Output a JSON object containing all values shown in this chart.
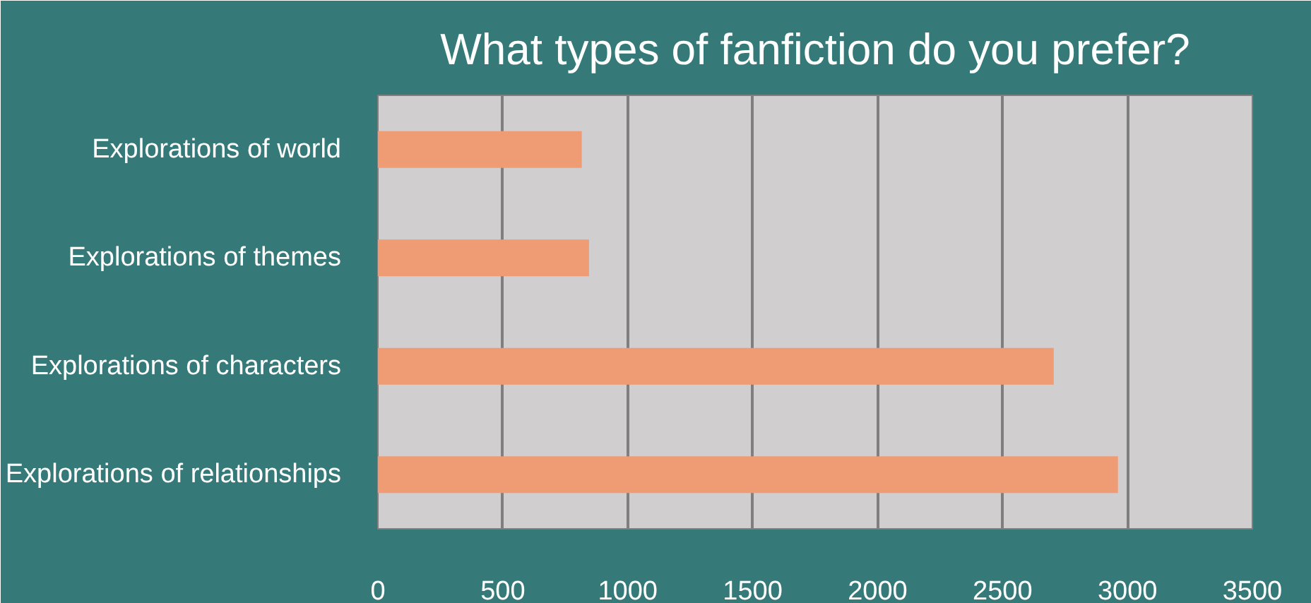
{
  "chart_data": {
    "type": "bar",
    "orientation": "horizontal",
    "title": "What types of fanfiction do you prefer?",
    "categories": [
      "Explorations of world",
      "Explorations of themes",
      "Explorations of characters",
      "Explorations of relationships"
    ],
    "values": [
      816,
      845,
      2705,
      2962
    ],
    "color": "#ef9b73",
    "xlim": [
      0,
      3500
    ],
    "xticks": [
      0,
      500,
      1000,
      1500,
      2000,
      2500,
      3000,
      3500
    ],
    "grid": "x"
  }
}
